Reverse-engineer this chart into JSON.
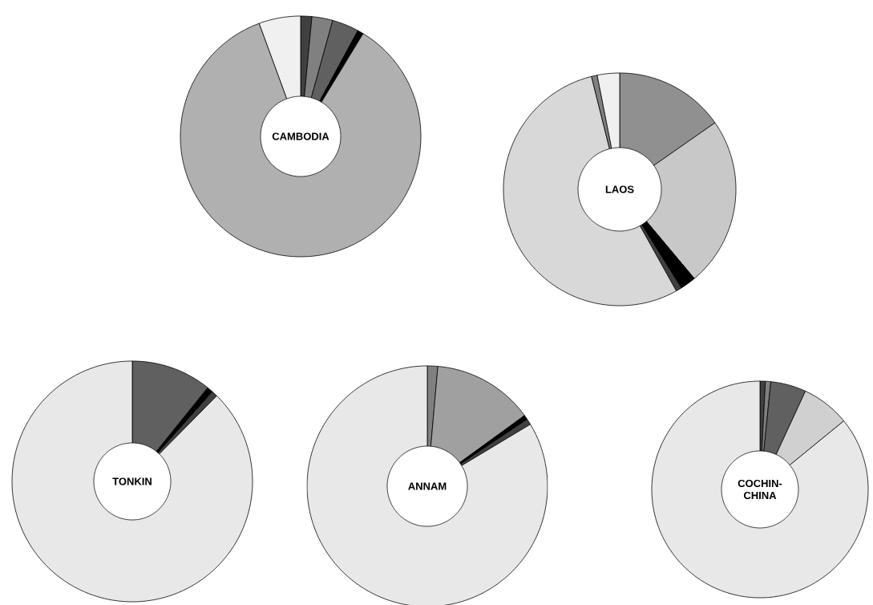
{
  "chart_data": [
    {
      "type": "donut",
      "title": "CAMBODIA",
      "categories": [
        null,
        null,
        null,
        null,
        null,
        null
      ],
      "values": [
        1.5,
        2.8,
        3.6,
        0.8,
        85.7,
        5.6
      ],
      "colors": [
        "#404040",
        "#808080",
        "#606060",
        "#000000",
        "#b0b0b0",
        "#f0f0f0"
      ]
    },
    {
      "type": "donut",
      "title": "LAOS",
      "categories": [
        null,
        null,
        null,
        null,
        null,
        null,
        null
      ],
      "values": [
        15.3,
        23.6,
        2.2,
        0.8,
        54.2,
        0.8,
        3.1
      ],
      "colors": [
        "#909090",
        "#c8c8c8",
        "#000000",
        "#404040",
        "#d8d8d8",
        "#808080",
        "#f0f0f0"
      ]
    },
    {
      "type": "donut",
      "title": "TONKIN",
      "categories": [
        null,
        null,
        null,
        null
      ],
      "values": [
        10.8,
        0.8,
        0.8,
        87.6
      ],
      "colors": [
        "#606060",
        "#000000",
        "#404040",
        "#e8e8e8"
      ]
    },
    {
      "type": "donut",
      "title": "ANNAM",
      "categories": [
        null,
        null,
        null,
        null,
        null
      ],
      "values": [
        1.4,
        13.6,
        0.6,
        0.8,
        83.6
      ],
      "colors": [
        "#808080",
        "#a0a0a0",
        "#000000",
        "#404040",
        "#e8e8e8"
      ]
    },
    {
      "type": "donut",
      "title": "COCHIN-CHINA",
      "categories": [
        null,
        null,
        null,
        null,
        null
      ],
      "values": [
        0.8,
        0.8,
        5.3,
        7.2,
        85.9
      ],
      "colors": [
        "#404040",
        "#808080",
        "#606060",
        "#d0d0d0",
        "#e8e8e8"
      ]
    }
  ]
}
